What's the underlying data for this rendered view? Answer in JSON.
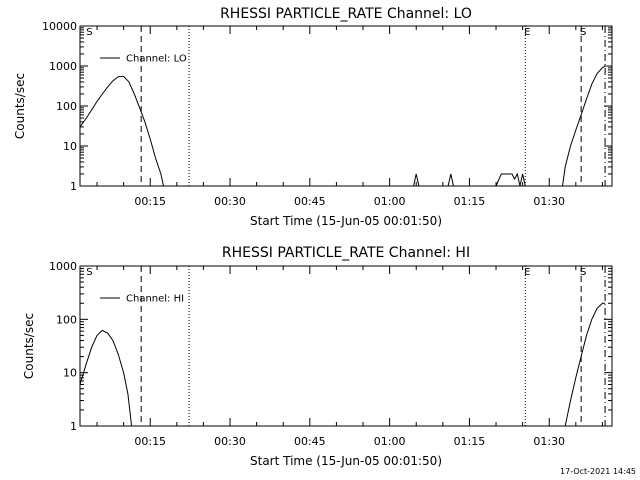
{
  "footer": {
    "timestamp": "17-Oct-2021 14:45"
  },
  "chart_data": [
    {
      "type": "line",
      "title": "RHESSI PARTICLE_RATE Channel: LO",
      "xlabel": "Start Time (15-Jun-05 00:01:50)",
      "ylabel": "Counts/sec",
      "yscale": "log",
      "xlim_minutes": [
        1.8,
        101.8
      ],
      "ylim": [
        1,
        10000
      ],
      "x_ticks": [
        15,
        30,
        45,
        60,
        75,
        90
      ],
      "x_tick_labels": [
        "00:15",
        "00:30",
        "00:45",
        "01:00",
        "01:15",
        "01:30"
      ],
      "y_ticks": [
        1,
        10,
        100,
        1000,
        10000
      ],
      "y_tick_labels": [
        "1",
        "10",
        "100",
        "1000",
        "10000"
      ],
      "legend": "Channel: LO",
      "vlines": [
        {
          "minute": 13.3,
          "style": "dashed",
          "label": ""
        },
        {
          "minute": 22.3,
          "style": "dotted",
          "label": ""
        },
        {
          "minute": 3.2,
          "style": "none",
          "label": "S"
        },
        {
          "minute": 85.5,
          "style": "dotted",
          "label": "E"
        },
        {
          "minute": 96.0,
          "style": "dashed",
          "label": "S"
        },
        {
          "minute": 100.5,
          "style": "dashdot",
          "label": ""
        }
      ],
      "series": [
        {
          "name": "Channel: LO",
          "segments": [
            [
              [
                1.8,
                30
              ],
              [
                3,
                50
              ],
              [
                4,
                80
              ],
              [
                5,
                130
              ],
              [
                6,
                200
              ],
              [
                7,
                300
              ],
              [
                8,
                430
              ],
              [
                9,
                540
              ],
              [
                10,
                550
              ],
              [
                11,
                400
              ],
              [
                12,
                200
              ],
              [
                13,
                90
              ],
              [
                14,
                40
              ],
              [
                15,
                15
              ],
              [
                16,
                5
              ],
              [
                17,
                2
              ],
              [
                17.5,
                1
              ]
            ],
            [
              [
                64.5,
                1
              ],
              [
                65,
                2
              ],
              [
                65.5,
                1
              ]
            ],
            [
              [
                71,
                1
              ],
              [
                71.5,
                2
              ],
              [
                72,
                1
              ]
            ],
            [
              [
                80,
                1
              ],
              [
                81,
                2
              ],
              [
                83,
                2
              ],
              [
                83.5,
                1.5
              ],
              [
                84,
                2
              ],
              [
                84.5,
                1
              ],
              [
                85,
                2
              ],
              [
                85.5,
                1
              ]
            ],
            [
              [
                92.5,
                1
              ],
              [
                93,
                3
              ],
              [
                94,
                10
              ],
              [
                95,
                25
              ],
              [
                96,
                60
              ],
              [
                97,
                150
              ],
              [
                98,
                350
              ],
              [
                99,
                650
              ],
              [
                100,
                900
              ],
              [
                100.5,
                1000
              ]
            ]
          ]
        }
      ]
    },
    {
      "type": "line",
      "title": "RHESSI PARTICLE_RATE Channel: HI",
      "xlabel": "Start Time (15-Jun-05 00:01:50)",
      "ylabel": "Counts/sec",
      "yscale": "log",
      "xlim_minutes": [
        1.8,
        101.8
      ],
      "ylim": [
        1,
        1000
      ],
      "x_ticks": [
        15,
        30,
        45,
        60,
        75,
        90
      ],
      "x_tick_labels": [
        "00:15",
        "00:30",
        "00:45",
        "01:00",
        "01:15",
        "01:30"
      ],
      "y_ticks": [
        1,
        10,
        100,
        1000
      ],
      "y_tick_labels": [
        "1",
        "10",
        "100",
        "1000"
      ],
      "legend": "Channel: HI",
      "vlines": [
        {
          "minute": 13.3,
          "style": "dashed",
          "label": ""
        },
        {
          "minute": 22.3,
          "style": "dotted",
          "label": ""
        },
        {
          "minute": 3.2,
          "style": "none",
          "label": "S"
        },
        {
          "minute": 85.5,
          "style": "dotted",
          "label": "E"
        },
        {
          "minute": 96.0,
          "style": "dashed",
          "label": "S"
        },
        {
          "minute": 100.5,
          "style": "dashdot",
          "label": ""
        }
      ],
      "series": [
        {
          "name": "Channel: HI",
          "segments": [
            [
              [
                1.8,
                6
              ],
              [
                3,
                15
              ],
              [
                4,
                30
              ],
              [
                5,
                50
              ],
              [
                6,
                62
              ],
              [
                7,
                55
              ],
              [
                8,
                40
              ],
              [
                9,
                22
              ],
              [
                10,
                10
              ],
              [
                10.8,
                4
              ],
              [
                11.3,
                1.5
              ],
              [
                11.5,
                1
              ]
            ],
            [
              [
                93,
                1
              ],
              [
                94,
                3
              ],
              [
                95,
                8
              ],
              [
                96,
                20
              ],
              [
                97,
                50
              ],
              [
                98,
                100
              ],
              [
                99,
                160
              ],
              [
                100,
                200
              ],
              [
                100.5,
                200
              ]
            ]
          ]
        }
      ]
    }
  ]
}
